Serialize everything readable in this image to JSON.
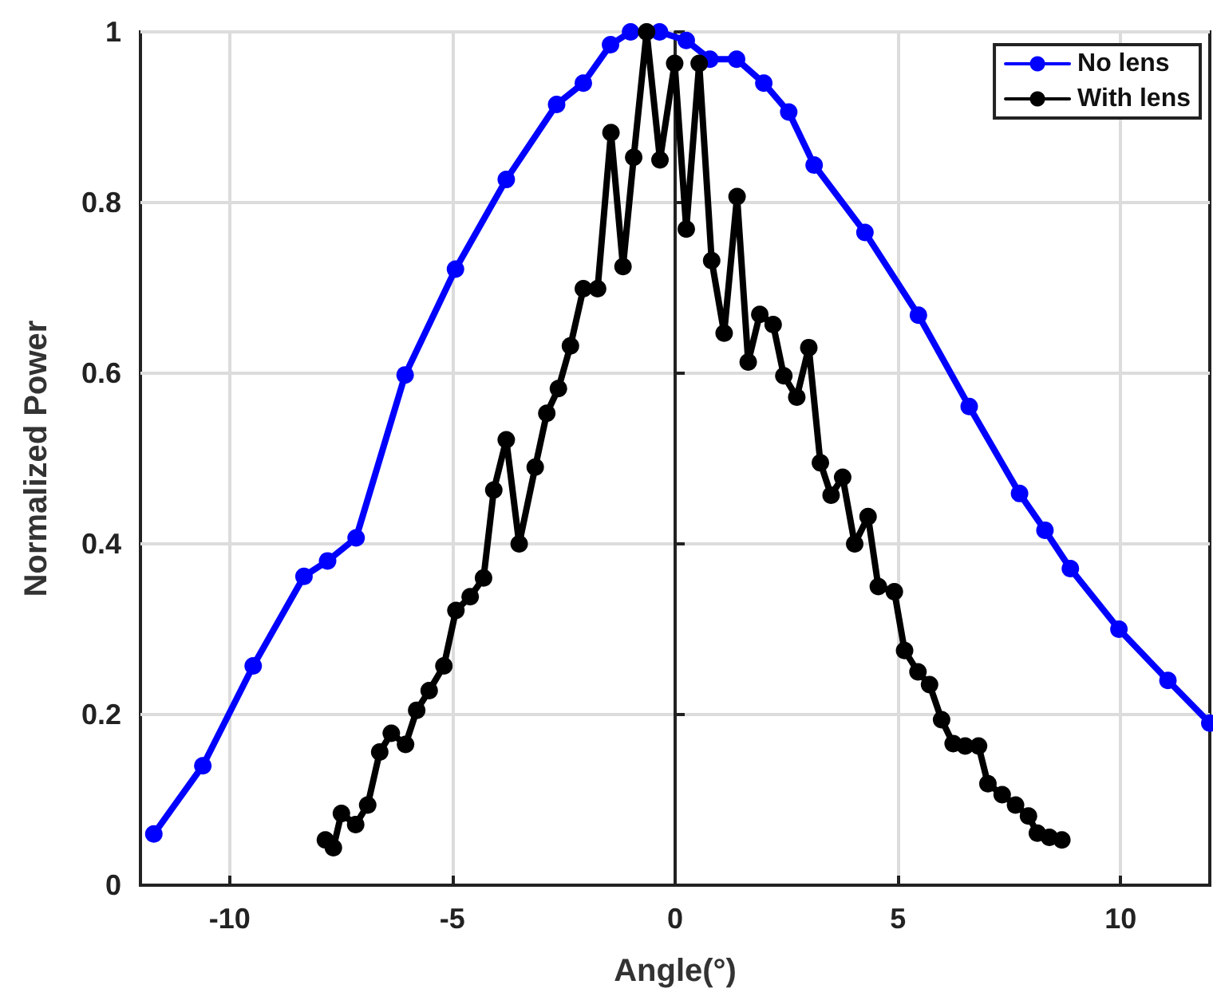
{
  "chart_data": {
    "type": "line",
    "xlabel": "Angle(°)",
    "ylabel": "Normalized Power",
    "xlim": [
      -12,
      12
    ],
    "ylim": [
      0,
      1
    ],
    "xticks": [
      -10,
      -5,
      0,
      5,
      10
    ],
    "yticks": [
      0,
      0.2,
      0.4,
      0.6,
      0.8,
      1
    ],
    "grid": true,
    "legend": "top right",
    "marker": "circle",
    "line_style": "solid",
    "series": [
      {
        "name": "No lens",
        "color": "#0000ff",
        "x": [
          -11.7,
          -10.6,
          -9.47,
          -8.33,
          -7.8,
          -7.16,
          -6.06,
          -4.93,
          -3.79,
          -2.66,
          -2.06,
          -1.45,
          -1.0,
          -0.35,
          0.25,
          0.78,
          1.38,
          1.99,
          2.55,
          3.12,
          4.26,
          5.46,
          6.6,
          7.73,
          8.3,
          8.87,
          9.96,
          11.06,
          12
        ],
        "values": [
          0.06,
          0.14,
          0.257,
          0.362,
          0.38,
          0.407,
          0.598,
          0.722,
          0.827,
          0.915,
          0.94,
          0.985,
          1.0,
          1.0,
          0.99,
          0.968,
          0.968,
          0.94,
          0.906,
          0.844,
          0.765,
          0.668,
          0.561,
          0.459,
          0.416,
          0.371,
          0.3,
          0.24,
          0.19
        ]
      },
      {
        "name": "With lens",
        "color": "#000000",
        "x": [
          -7.85,
          -7.67,
          -7.49,
          -7.17,
          -6.9,
          -6.63,
          -6.37,
          -6.05,
          -5.8,
          -5.52,
          -5.19,
          -4.92,
          -4.6,
          -4.3,
          -4.07,
          -3.79,
          -3.5,
          -3.14,
          -2.88,
          -2.62,
          -2.35,
          -2.06,
          -1.74,
          -1.44,
          -1.17,
          -0.93,
          -0.64,
          -0.34,
          -0.01,
          0.25,
          0.54,
          0.82,
          1.1,
          1.39,
          1.64,
          1.9,
          2.2,
          2.44,
          2.73,
          3.0,
          3.26,
          3.5,
          3.76,
          4.03,
          4.33,
          4.56,
          4.92,
          5.15,
          5.45,
          5.71,
          5.98,
          6.24,
          6.51,
          6.81,
          7.02,
          7.34,
          7.64,
          7.93,
          8.13,
          8.4,
          8.68
        ],
        "values": [
          0.053,
          0.044,
          0.084,
          0.071,
          0.094,
          0.156,
          0.178,
          0.165,
          0.205,
          0.228,
          0.257,
          0.322,
          0.338,
          0.36,
          0.463,
          0.522,
          0.4,
          0.49,
          0.553,
          0.582,
          0.632,
          0.699,
          0.699,
          0.882,
          0.725,
          0.853,
          1.0,
          0.85,
          0.963,
          0.769,
          0.963,
          0.732,
          0.647,
          0.807,
          0.613,
          0.669,
          0.657,
          0.597,
          0.572,
          0.63,
          0.495,
          0.457,
          0.478,
          0.4,
          0.432,
          0.35,
          0.344,
          0.275,
          0.25,
          0.235,
          0.194,
          0.166,
          0.163,
          0.163,
          0.119,
          0.106,
          0.094,
          0.081,
          0.061,
          0.056,
          0.053
        ]
      }
    ]
  }
}
